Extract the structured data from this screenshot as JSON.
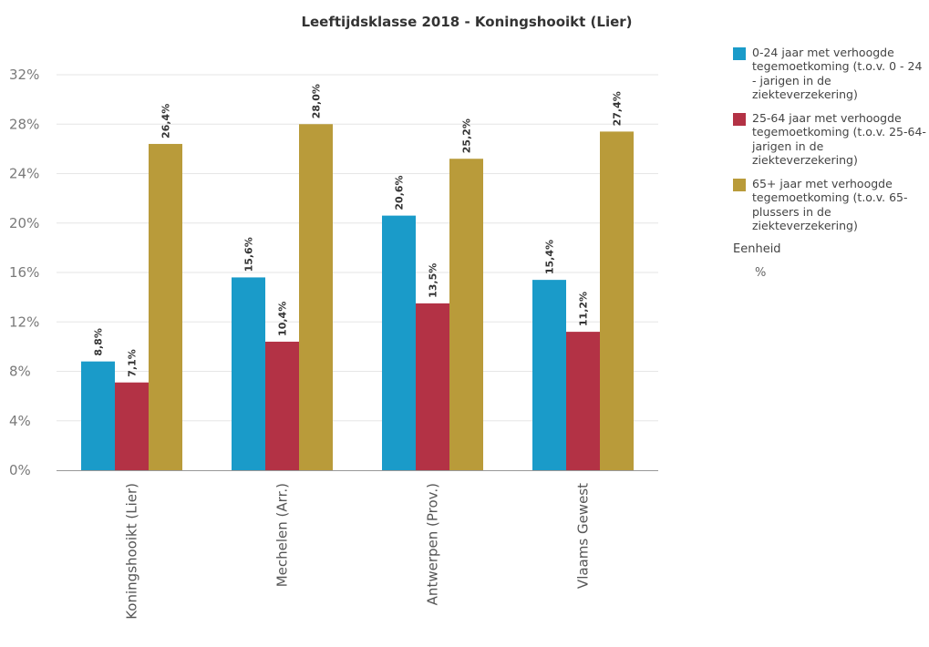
{
  "chart_data": {
    "type": "bar",
    "title": "Leeftijdsklasse 2018 - Koningshooikt (Lier)",
    "categories": [
      "Koningshooikt (Lier)",
      "Mechelen (Arr.)",
      "Antwerpen (Prov.)",
      "Vlaams Gewest"
    ],
    "series": [
      {
        "name": "0-24 jaar met verhoogde tegemoetkoming (t.o.v. 0 - 24 - jarigen in de ziekteverzekering)",
        "color": "#1a9bc9",
        "values": [
          8.8,
          15.6,
          20.6,
          15.4
        ],
        "labels": [
          "8,8%",
          "15,6%",
          "20,6%",
          "15,4%"
        ]
      },
      {
        "name": "25-64 jaar met verhoogde tegemoetkoming (t.o.v. 25-64-jarigen in de ziekteverzekering)",
        "color": "#b33245",
        "values": [
          7.1,
          10.4,
          13.5,
          11.2
        ],
        "labels": [
          "7,1%",
          "10,4%",
          "13,5%",
          "11,2%"
        ]
      },
      {
        "name": "65+ jaar met verhoogde tegemoetkoming (t.o.v. 65-plussers in de ziekteverzekering)",
        "color": "#b99b3a",
        "values": [
          26.4,
          28.0,
          25.2,
          27.4
        ],
        "labels": [
          "26,4%",
          "28,0%",
          "25,2%",
          "27,4%"
        ]
      }
    ],
    "yticks": [
      "0%",
      "4%",
      "8%",
      "12%",
      "16%",
      "20%",
      "24%",
      "28%",
      "32%"
    ],
    "ylim": [
      0,
      32
    ],
    "ylabel": "",
    "xlabel": "",
    "grid": true,
    "legend_position": "right"
  },
  "legend": {
    "unit_title": "Eenheid",
    "unit_value": "%"
  }
}
